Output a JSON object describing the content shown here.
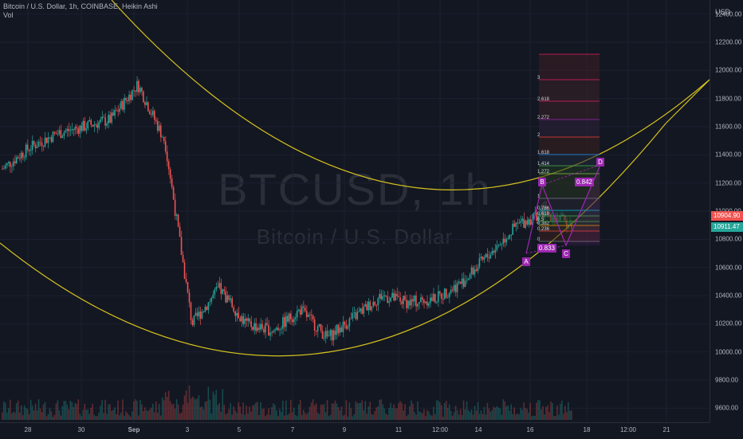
{
  "header": {
    "symbol": "Bitcoin / U.S. Dollar, 1h, COINBASE, Heikin Ashi",
    "indicator": "Vol"
  },
  "watermark": {
    "ticker": "BTCUSD, 1h",
    "name": "Bitcoin / U.S. Dollar"
  },
  "price_axis": {
    "currency": "USD",
    "ticks": [
      "12400.00",
      "12200.00",
      "12000.00",
      "11800.00",
      "11600.00",
      "11400.00",
      "11200.00",
      "11000.00",
      "10800.00",
      "10600.00",
      "10400.00",
      "10200.00",
      "10000.00",
      "9800.00",
      "9600.00"
    ],
    "last_price": "10904.90",
    "second_price": "10911.47",
    "third_price": "10...",
    "colors": {
      "last_price_bg": "#ef5350",
      "second_price_bg": "#26a69a"
    }
  },
  "time_axis": {
    "ticks": [
      "28",
      "30",
      "Sep",
      "3",
      "5",
      "7",
      "9",
      "11",
      "12:00",
      "14",
      "16",
      "18",
      "12:00",
      "21"
    ]
  },
  "pattern": {
    "points": [
      "A",
      "B",
      "C",
      "D"
    ],
    "ratios": [
      "0.842",
      "0.833"
    ],
    "fib_levels": [
      "0",
      "0.236",
      "0.382",
      "0.5",
      "0.618",
      "0.786",
      "1",
      "1.272",
      "1.414",
      "1.618",
      "2",
      "2.272",
      "2.618",
      "3"
    ],
    "colors": {
      "pattern": "#9c27b0",
      "label_bg": "#9c27b0"
    }
  },
  "colors": {
    "up": "#26a69a",
    "down": "#ef5350",
    "curve": "#d4c01e",
    "background": "#131722"
  },
  "chart_data": {
    "type": "candlestick",
    "title": "Bitcoin / U.S. Dollar, 1h, COINBASE, Heikin Ashi",
    "ylim": [
      9500,
      12500
    ],
    "y_ticks": [
      9600,
      9800,
      10000,
      10200,
      10400,
      10600,
      10800,
      11000,
      11200,
      11400,
      11600,
      11800,
      12000,
      12200,
      12400
    ],
    "x_ticks": [
      "28",
      "30",
      "Sep",
      "3",
      "5",
      "7",
      "9",
      "11",
      "12:00",
      "14",
      "16",
      "18",
      "12:00",
      "21"
    ],
    "price_path": {
      "x": [
        "Aug 27",
        "Aug 28",
        "Aug 29",
        "Aug 30",
        "Aug 31",
        "Sep 1",
        "Sep 2",
        "Sep 3",
        "Sep 4",
        "Sep 5",
        "Sep 6",
        "Sep 7",
        "Sep 8",
        "Sep 9",
        "Sep 10",
        "Sep 11",
        "Sep 12",
        "Sep 13",
        "Sep 14",
        "Sep 15",
        "Sep 16",
        "Sep 17"
      ],
      "close": [
        11300,
        11450,
        11550,
        11600,
        11650,
        11900,
        11500,
        10200,
        10450,
        10200,
        10150,
        10300,
        10100,
        10250,
        10400,
        10350,
        10380,
        10500,
        10700,
        10900,
        11000,
        10900
      ]
    },
    "last_price": 10904.9
  }
}
